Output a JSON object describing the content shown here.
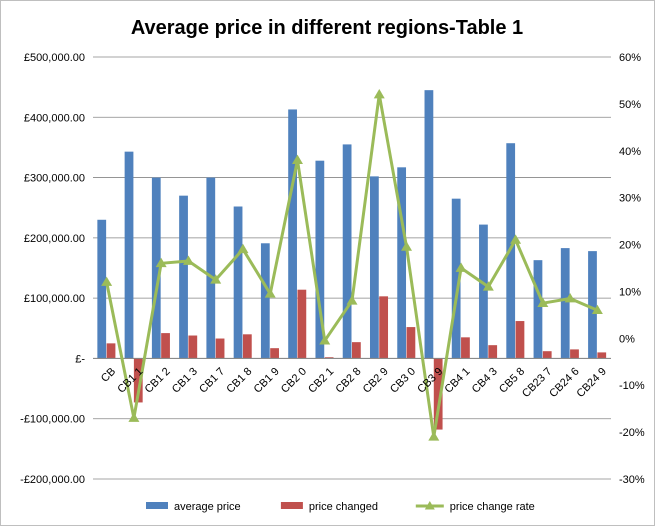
{
  "chart_data": {
    "type": "bar",
    "title": "Average price in different regions-Table 1",
    "categories": [
      "CB",
      "CB1 1",
      "CB1 2",
      "CB1 3",
      "CB1 7",
      "CB1 8",
      "CB1 9",
      "CB2 0",
      "CB2 1",
      "CB2 8",
      "CB2 9",
      "CB3 0",
      "CB3 9",
      "CB4 1",
      "CB4 3",
      "CB5 8",
      "CB23 7",
      "CB24 6",
      "CB24 9"
    ],
    "series": [
      {
        "name": "average price",
        "kind": "bar",
        "axis": "left",
        "color": "#4F81BD",
        "values": [
          230000,
          343000,
          300000,
          270000,
          300000,
          252000,
          191000,
          413000,
          328000,
          355000,
          302000,
          317000,
          445000,
          265000,
          222000,
          357000,
          163000,
          183000,
          178000
        ]
      },
      {
        "name": "price changed",
        "kind": "bar",
        "axis": "left",
        "color": "#C0504D",
        "values": [
          25000,
          -73000,
          42000,
          38000,
          33000,
          40000,
          17000,
          114000,
          2000,
          27000,
          103000,
          52000,
          -118000,
          35000,
          22000,
          62000,
          12000,
          15000,
          10000
        ]
      },
      {
        "name": "price change rate",
        "kind": "line",
        "axis": "right",
        "color": "#9BBB59",
        "values": [
          0.12,
          -0.17,
          0.16,
          0.165,
          0.125,
          0.19,
          0.095,
          0.38,
          -0.005,
          0.08,
          0.52,
          0.195,
          -0.21,
          0.15,
          0.11,
          0.21,
          0.075,
          0.085,
          0.06
        ]
      }
    ],
    "y_left": {
      "ylim": [
        -200000,
        500000
      ],
      "ticks": [
        500000,
        400000,
        300000,
        200000,
        100000,
        0,
        -100000,
        -200000
      ],
      "tick_labels": [
        "£500,000.00",
        "£400,000.00",
        "£300,000.00",
        "£200,000.00",
        "£100,000.00",
        "£-",
        "-£100,000.00",
        "-£200,000.00"
      ]
    },
    "y_right": {
      "ylim": [
        -0.3,
        0.6
      ],
      "ticks": [
        0.6,
        0.5,
        0.4,
        0.3,
        0.2,
        0.1,
        0,
        -0.1,
        -0.2,
        -0.3
      ],
      "tick_labels": [
        "60%",
        "50%",
        "40%",
        "30%",
        "20%",
        "10%",
        "0%",
        "-10%",
        "-20%",
        "-30%"
      ]
    },
    "grid": true,
    "legend": "bottom"
  }
}
